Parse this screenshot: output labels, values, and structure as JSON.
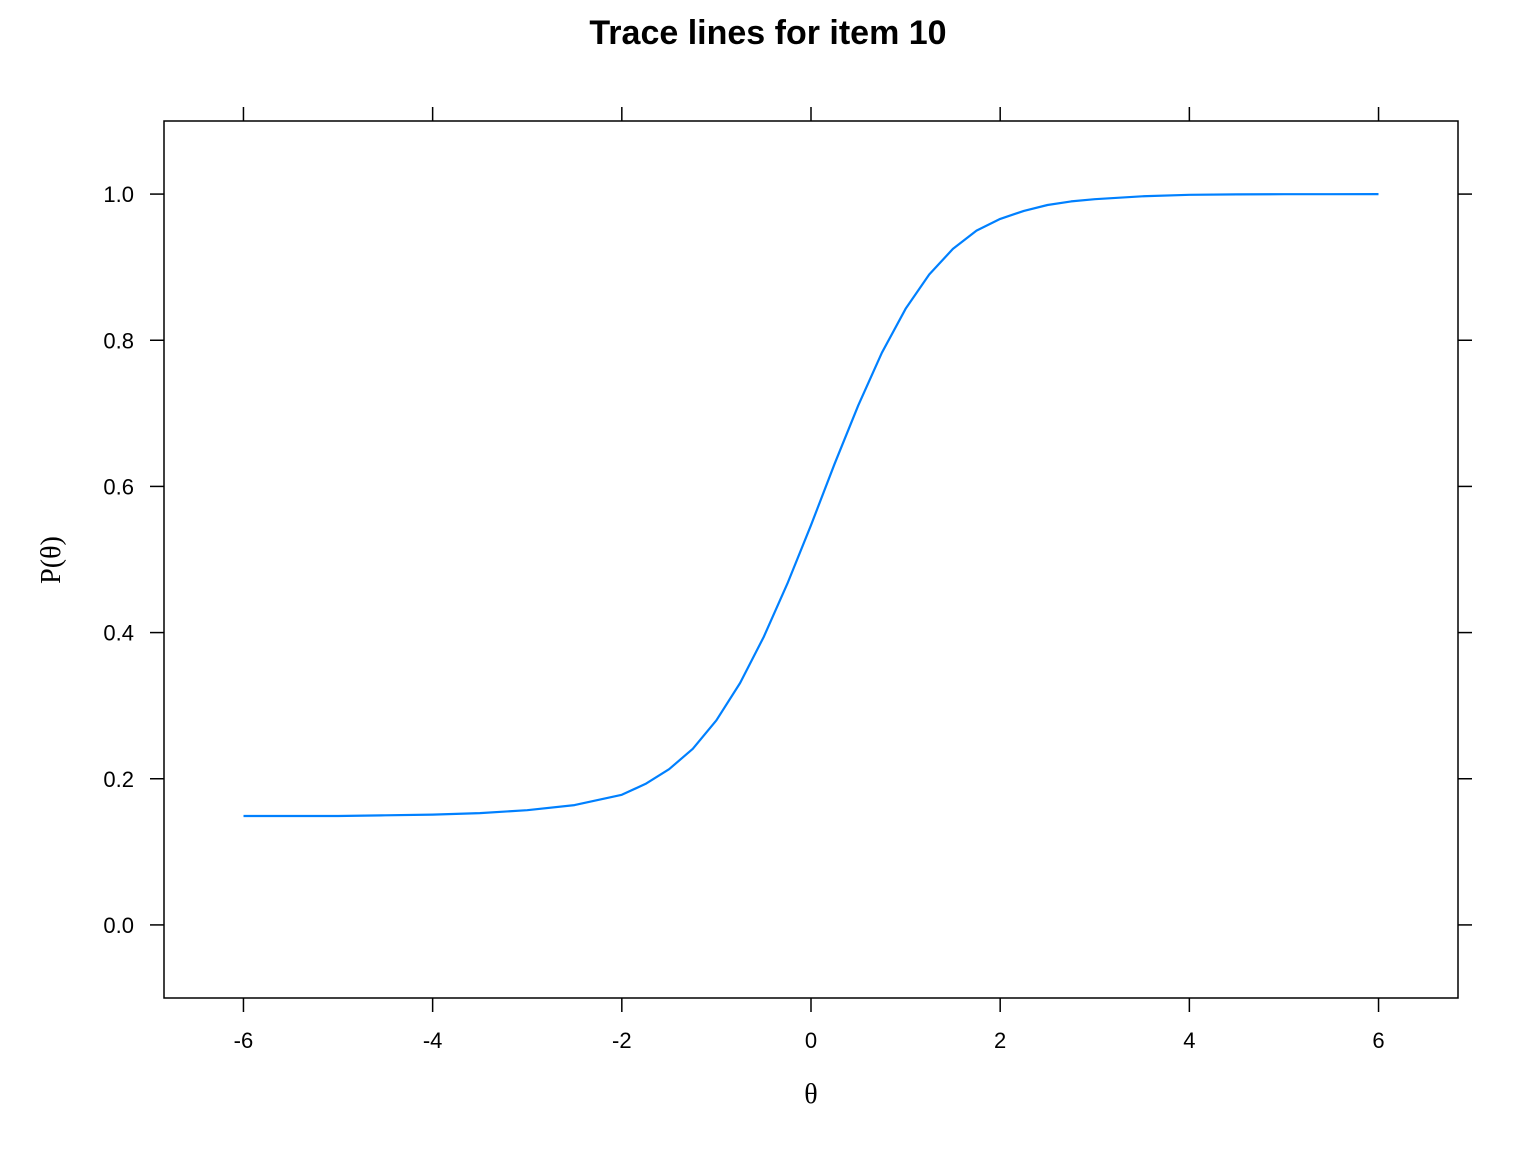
{
  "chart_data": {
    "type": "line",
    "title": "Trace lines for item 10",
    "xlabel": "θ",
    "ylabel": "P(θ)",
    "xlim": [
      -6.84,
      6.84
    ],
    "ylim": [
      -0.1,
      1.1
    ],
    "x_ticks": [
      -6,
      -4,
      -2,
      0,
      2,
      4,
      6
    ],
    "x_tick_labels": [
      "-6",
      "-4",
      "-2",
      "0",
      "2",
      "4",
      "6"
    ],
    "y_ticks": [
      0.0,
      0.2,
      0.4,
      0.6,
      0.8,
      1.0
    ],
    "y_tick_labels": [
      "0.0",
      "0.2",
      "0.4",
      "0.6",
      "0.8",
      "1.0"
    ],
    "grid": false,
    "line_color": "#0080ff",
    "series": [
      {
        "x": [
          -6,
          -5.5,
          -5,
          -4.5,
          -4,
          -3.5,
          -3,
          -2.5,
          -2,
          -1.75,
          -1.5,
          -1.25,
          -1,
          -0.75,
          -0.5,
          -0.25,
          0,
          0.25,
          0.5,
          0.75,
          1,
          1.25,
          1.5,
          1.75,
          2,
          2.25,
          2.5,
          2.75,
          3,
          3.5,
          4,
          4.5,
          5,
          5.5,
          6
        ],
        "y": [
          0.149,
          0.149,
          0.149,
          0.15,
          0.151,
          0.153,
          0.157,
          0.164,
          0.178,
          0.193,
          0.213,
          0.241,
          0.28,
          0.331,
          0.394,
          0.467,
          0.547,
          0.631,
          0.711,
          0.783,
          0.843,
          0.89,
          0.925,
          0.95,
          0.966,
          0.977,
          0.985,
          0.99,
          0.993,
          0.997,
          0.999,
          0.9995,
          0.9998,
          0.9999,
          1.0
        ]
      }
    ]
  }
}
